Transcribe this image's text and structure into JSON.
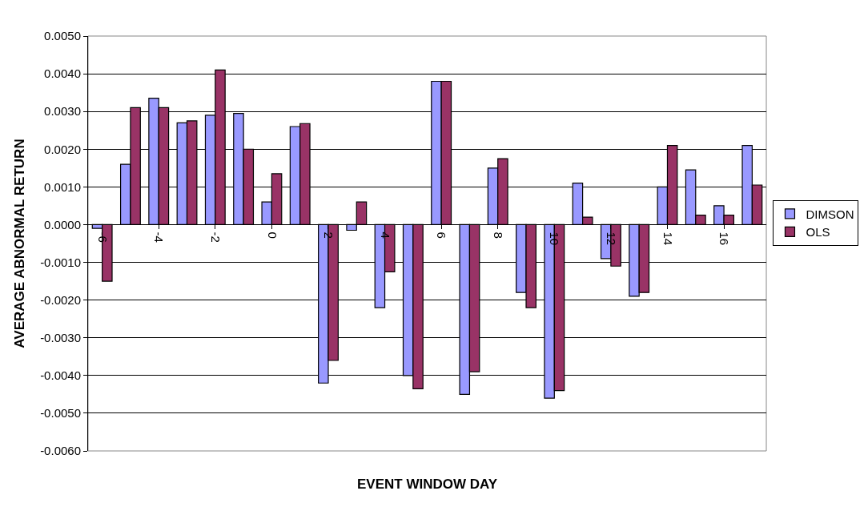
{
  "chart_data": {
    "type": "bar",
    "xlabel": "EVENT WINDOW DAY",
    "ylabel": "AVERAGE ABNORMAL RETURN",
    "categories": [
      "-6",
      null,
      "-4",
      null,
      "-2",
      null,
      "0",
      null,
      "2",
      null,
      "4",
      null,
      "6",
      null,
      "8",
      null,
      "10",
      null,
      "12",
      null,
      "14",
      null,
      "16",
      null
    ],
    "series": [
      {
        "name": "DIMSON",
        "color": "#9999ff",
        "values": [
          -0.0001,
          0.0016,
          0.00335,
          0.0027,
          0.0029,
          0.00295,
          0.0006,
          0.0026,
          -0.0042,
          -0.00015,
          -0.0022,
          -0.004,
          0.0038,
          -0.0045,
          0.0015,
          -0.0018,
          -0.0046,
          0.0011,
          -0.0009,
          -0.0019,
          0.001,
          0.00145,
          0.0005,
          0.0021
        ]
      },
      {
        "name": "OLS",
        "color": "#993366",
        "values": [
          -0.0015,
          0.0031,
          0.0031,
          0.00275,
          0.0041,
          0.002,
          0.00135,
          0.00268,
          -0.0036,
          0.0006,
          -0.00125,
          -0.00435,
          0.0038,
          -0.0039,
          0.00175,
          -0.0022,
          -0.0044,
          0.0002,
          -0.0011,
          -0.0018,
          0.0021,
          0.00025,
          0.00025,
          0.00105
        ]
      }
    ],
    "ylim": [
      -0.006,
      0.005
    ],
    "yticks": [
      {
        "value": -0.006,
        "label": "-0.0060"
      },
      {
        "value": -0.005,
        "label": "-0.0050"
      },
      {
        "value": -0.004,
        "label": "-0.0040"
      },
      {
        "value": -0.003,
        "label": "-0.0030"
      },
      {
        "value": -0.002,
        "label": "-0.0020"
      },
      {
        "value": -0.001,
        "label": "-0.0010"
      },
      {
        "value": 0,
        "label": "0.0000"
      },
      {
        "value": 0.001,
        "label": "0.0010"
      },
      {
        "value": 0.002,
        "label": "0.0020"
      },
      {
        "value": 0.003,
        "label": "0.0030"
      },
      {
        "value": 0.004,
        "label": "0.0040"
      },
      {
        "value": 0.005,
        "label": "0.0050"
      }
    ],
    "grid": "y",
    "legend": "right"
  }
}
